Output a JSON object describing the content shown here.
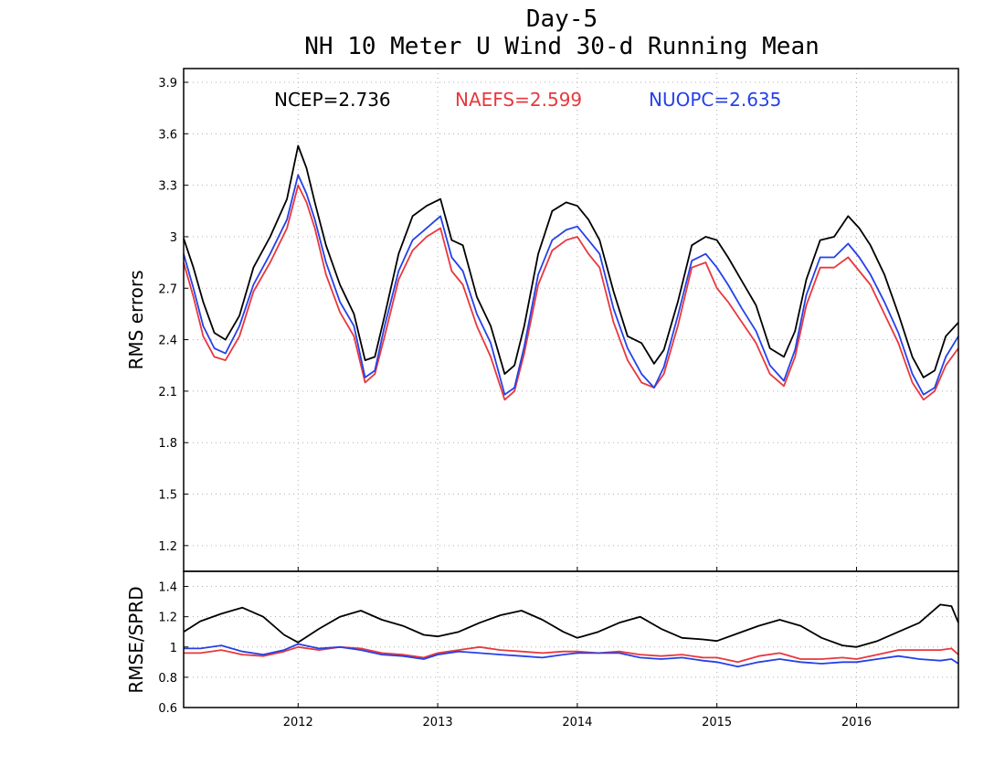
{
  "chart_data": [
    {
      "type": "line",
      "title": "Day-5",
      "subtitle": "NH 10 Meter U Wind 30-d Running Mean",
      "ylabel": "RMS errors",
      "xlabel": "",
      "xlim": [
        2011.18,
        2016.73
      ],
      "ylim": [
        1.05,
        3.98
      ],
      "x_ticks": [
        "2012",
        "2013",
        "2014",
        "2015",
        "2016"
      ],
      "x_tick_values": [
        2012,
        2013,
        2014,
        2015,
        2016
      ],
      "y_ticks": [
        "1.2",
        "1.5",
        "1.8",
        "2.1",
        "2.4",
        "2.7",
        "3",
        "3.3",
        "3.6",
        "3.9"
      ],
      "y_tick_values": [
        1.2,
        1.5,
        1.8,
        2.1,
        2.4,
        2.7,
        3.0,
        3.3,
        3.6,
        3.9
      ],
      "grid": true,
      "legend_position": "top",
      "x": [
        2011.18,
        2011.25,
        2011.32,
        2011.4,
        2011.48,
        2011.58,
        2011.68,
        2011.8,
        2011.92,
        2012.0,
        2012.06,
        2012.12,
        2012.2,
        2012.3,
        2012.4,
        2012.48,
        2012.55,
        2012.62,
        2012.72,
        2012.82,
        2012.92,
        2013.02,
        2013.1,
        2013.18,
        2013.28,
        2013.38,
        2013.48,
        2013.55,
        2013.62,
        2013.72,
        2013.82,
        2013.92,
        2014.0,
        2014.08,
        2014.16,
        2014.26,
        2014.36,
        2014.46,
        2014.55,
        2014.62,
        2014.72,
        2014.82,
        2014.92,
        2015.0,
        2015.08,
        2015.18,
        2015.28,
        2015.38,
        2015.48,
        2015.56,
        2015.64,
        2015.74,
        2015.84,
        2015.94,
        2016.02,
        2016.1,
        2016.2,
        2016.3,
        2016.4,
        2016.48,
        2016.56,
        2016.64,
        2016.73
      ],
      "series": [
        {
          "name": "NCEP",
          "color": "#000000",
          "values": [
            2.99,
            2.82,
            2.62,
            2.44,
            2.4,
            2.54,
            2.82,
            3.0,
            3.22,
            3.53,
            3.4,
            3.2,
            2.95,
            2.72,
            2.55,
            2.28,
            2.3,
            2.54,
            2.9,
            3.12,
            3.18,
            3.22,
            2.98,
            2.95,
            2.65,
            2.48,
            2.2,
            2.25,
            2.48,
            2.9,
            3.15,
            3.2,
            3.18,
            3.1,
            2.98,
            2.68,
            2.42,
            2.38,
            2.26,
            2.34,
            2.62,
            2.95,
            3.0,
            2.98,
            2.88,
            2.74,
            2.6,
            2.35,
            2.3,
            2.45,
            2.75,
            2.98,
            3.0,
            3.12,
            3.05,
            2.95,
            2.78,
            2.55,
            2.3,
            2.18,
            2.22,
            2.42,
            2.5
          ]
        },
        {
          "name": "NAEFS",
          "color": "#e8383d",
          "values": [
            2.85,
            2.65,
            2.42,
            2.3,
            2.28,
            2.42,
            2.68,
            2.85,
            3.05,
            3.3,
            3.2,
            3.05,
            2.78,
            2.56,
            2.42,
            2.15,
            2.2,
            2.42,
            2.75,
            2.92,
            3.0,
            3.05,
            2.8,
            2.72,
            2.48,
            2.3,
            2.05,
            2.1,
            2.32,
            2.72,
            2.92,
            2.98,
            3.0,
            2.9,
            2.82,
            2.5,
            2.28,
            2.15,
            2.12,
            2.2,
            2.48,
            2.82,
            2.85,
            2.7,
            2.62,
            2.5,
            2.38,
            2.2,
            2.13,
            2.3,
            2.6,
            2.82,
            2.82,
            2.88,
            2.8,
            2.72,
            2.55,
            2.38,
            2.15,
            2.05,
            2.1,
            2.25,
            2.35
          ]
        },
        {
          "name": "NUOPC",
          "color": "#2541e8",
          "values": [
            2.9,
            2.7,
            2.48,
            2.35,
            2.32,
            2.48,
            2.72,
            2.9,
            3.1,
            3.36,
            3.25,
            3.1,
            2.85,
            2.62,
            2.48,
            2.18,
            2.22,
            2.48,
            2.8,
            2.98,
            3.05,
            3.12,
            2.88,
            2.8,
            2.55,
            2.38,
            2.08,
            2.12,
            2.36,
            2.78,
            2.98,
            3.04,
            3.06,
            2.98,
            2.9,
            2.58,
            2.35,
            2.2,
            2.12,
            2.24,
            2.54,
            2.86,
            2.9,
            2.82,
            2.72,
            2.58,
            2.45,
            2.25,
            2.16,
            2.34,
            2.66,
            2.88,
            2.88,
            2.96,
            2.88,
            2.78,
            2.62,
            2.44,
            2.2,
            2.08,
            2.12,
            2.3,
            2.42
          ]
        }
      ],
      "legend": [
        {
          "label": "NCEP=2.736",
          "color": "#000000"
        },
        {
          "label": "NAEFS=2.599",
          "color": "#e8383d"
        },
        {
          "label": "NUOPC=2.635",
          "color": "#2541e8"
        }
      ]
    },
    {
      "type": "line",
      "title": "",
      "ylabel": "RMSE/SPRD",
      "xlabel": "",
      "xlim": [
        2011.18,
        2016.73
      ],
      "ylim": [
        0.6,
        1.5
      ],
      "x_ticks": [
        "2012",
        "2013",
        "2014",
        "2015",
        "2016"
      ],
      "x_tick_values": [
        2012,
        2013,
        2014,
        2015,
        2016
      ],
      "y_ticks": [
        "0.6",
        "0.8",
        "1",
        "1.2",
        "1.4"
      ],
      "y_tick_values": [
        0.6,
        0.8,
        1.0,
        1.2,
        1.4
      ],
      "grid": true,
      "x": [
        2011.18,
        2011.3,
        2011.45,
        2011.6,
        2011.75,
        2011.9,
        2012.0,
        2012.15,
        2012.3,
        2012.45,
        2012.6,
        2012.75,
        2012.9,
        2013.0,
        2013.15,
        2013.3,
        2013.45,
        2013.6,
        2013.75,
        2013.9,
        2014.0,
        2014.15,
        2014.3,
        2014.45,
        2014.6,
        2014.75,
        2014.9,
        2015.0,
        2015.15,
        2015.3,
        2015.45,
        2015.6,
        2015.75,
        2015.9,
        2016.0,
        2016.15,
        2016.3,
        2016.45,
        2016.6,
        2016.68,
        2016.73
      ],
      "series": [
        {
          "name": "NCEP",
          "color": "#000000",
          "values": [
            1.1,
            1.17,
            1.22,
            1.26,
            1.2,
            1.08,
            1.03,
            1.12,
            1.2,
            1.24,
            1.18,
            1.14,
            1.08,
            1.07,
            1.1,
            1.16,
            1.21,
            1.24,
            1.18,
            1.1,
            1.06,
            1.1,
            1.16,
            1.2,
            1.12,
            1.06,
            1.05,
            1.04,
            1.09,
            1.14,
            1.18,
            1.14,
            1.06,
            1.01,
            1.0,
            1.04,
            1.1,
            1.16,
            1.28,
            1.27,
            1.16
          ]
        },
        {
          "name": "NAEFS",
          "color": "#e8383d",
          "values": [
            0.96,
            0.96,
            0.98,
            0.95,
            0.94,
            0.97,
            1.0,
            0.98,
            1.0,
            0.99,
            0.96,
            0.95,
            0.93,
            0.96,
            0.98,
            1.0,
            0.98,
            0.97,
            0.96,
            0.97,
            0.97,
            0.96,
            0.97,
            0.95,
            0.94,
            0.95,
            0.93,
            0.93,
            0.9,
            0.94,
            0.96,
            0.92,
            0.92,
            0.93,
            0.92,
            0.95,
            0.98,
            0.98,
            0.98,
            0.99,
            0.95
          ]
        },
        {
          "name": "NUOPC",
          "color": "#2541e8",
          "values": [
            0.99,
            0.99,
            1.01,
            0.97,
            0.95,
            0.98,
            1.02,
            0.99,
            1.0,
            0.98,
            0.95,
            0.94,
            0.92,
            0.95,
            0.97,
            0.96,
            0.95,
            0.94,
            0.93,
            0.95,
            0.96,
            0.96,
            0.96,
            0.93,
            0.92,
            0.93,
            0.91,
            0.9,
            0.87,
            0.9,
            0.92,
            0.9,
            0.89,
            0.9,
            0.9,
            0.92,
            0.94,
            0.92,
            0.91,
            0.92,
            0.89
          ]
        }
      ]
    }
  ]
}
